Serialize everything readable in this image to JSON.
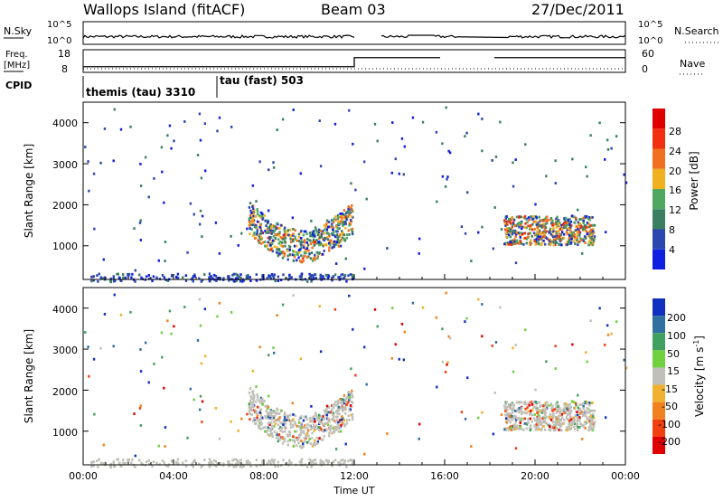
{
  "header": {
    "station": "Wallops Island (fitACF)",
    "beam": "Beam 03",
    "date": "27/Dec/2011"
  },
  "noise_panel": {
    "left_label": "N.Sky",
    "right_label": "N.Search",
    "left_ticks": [
      "10^5",
      "10^0"
    ],
    "right_ticks": [
      "10^5",
      "10^0"
    ]
  },
  "freq_panel": {
    "left_label_line1": "Freq.",
    "left_label_line2": "[MHz]",
    "right_label": "Nave",
    "left_ticks": [
      "18",
      "8"
    ],
    "right_ticks": [
      "60",
      "0"
    ]
  },
  "cpid_panel": {
    "label": "CPID",
    "modes": [
      {
        "name": "themis (tau) 3310",
        "start_hour": 0,
        "end_hour": 6
      },
      {
        "name": "tau (fast) 503",
        "start_hour": 6,
        "end_hour": 24
      }
    ]
  },
  "power_panel": {
    "ylabel": "Slant Range [km]",
    "y_ticks": [
      "1000",
      "2000",
      "3000",
      "4000"
    ],
    "colorbar_label": "Power [dB]",
    "colorbar_ticks": [
      "4",
      "8",
      "12",
      "16",
      "20",
      "24",
      "28"
    ],
    "colors": [
      "#1020e0",
      "#2a48b0",
      "#3a8060",
      "#50a860",
      "#f0b020",
      "#f07020",
      "#f03010",
      "#e00000"
    ]
  },
  "velocity_panel": {
    "ylabel": "Slant Range [km]",
    "y_ticks": [
      "1000",
      "2000",
      "3000",
      "4000"
    ],
    "colorbar_label": "Velocity [m s",
    "colorbar_label_sup": "-1",
    "colorbar_label_end": "]",
    "colorbar_ticks": [
      "200",
      "100",
      "50",
      "15",
      "-15",
      "-50",
      "-100",
      "-200"
    ],
    "colors": [
      "#1030c0",
      "#3070a0",
      "#40a060",
      "#70d040",
      "#c0c0b8",
      "#f0b030",
      "#f08020",
      "#f04010",
      "#e00000"
    ]
  },
  "x_axis": {
    "label": "Time UT",
    "ticks": [
      "00:00",
      "04:00",
      "08:00",
      "12:00",
      "16:00",
      "20:00",
      "00:00"
    ]
  },
  "chart_data": {
    "type": "heatmap",
    "title": "Wallops Island (fitACF)",
    "x_unit_hours": [
      0,
      24
    ],
    "y_range_km": [
      180,
      4500
    ],
    "power_range_db": [
      0,
      32
    ],
    "velocity_range_ms": [
      -250,
      250
    ],
    "power_features": [
      {
        "t0": 7.3,
        "t1": 11.9,
        "r_center": 1700,
        "r_width": 400,
        "peak_db": 26,
        "desc": "main arc"
      },
      {
        "t0": 18.6,
        "t1": 22.6,
        "r_center": 1400,
        "r_width": 350,
        "peak_db": 28,
        "desc": "evening arc"
      },
      {
        "t0": 0.0,
        "t1": 12.0,
        "r_center": 250,
        "r_width": 100,
        "peak_db": 8,
        "desc": "ground scatter near range"
      }
    ],
    "freq_mhz": {
      "t0_12h": 10.5,
      "t12_24h": 14.5
    }
  }
}
